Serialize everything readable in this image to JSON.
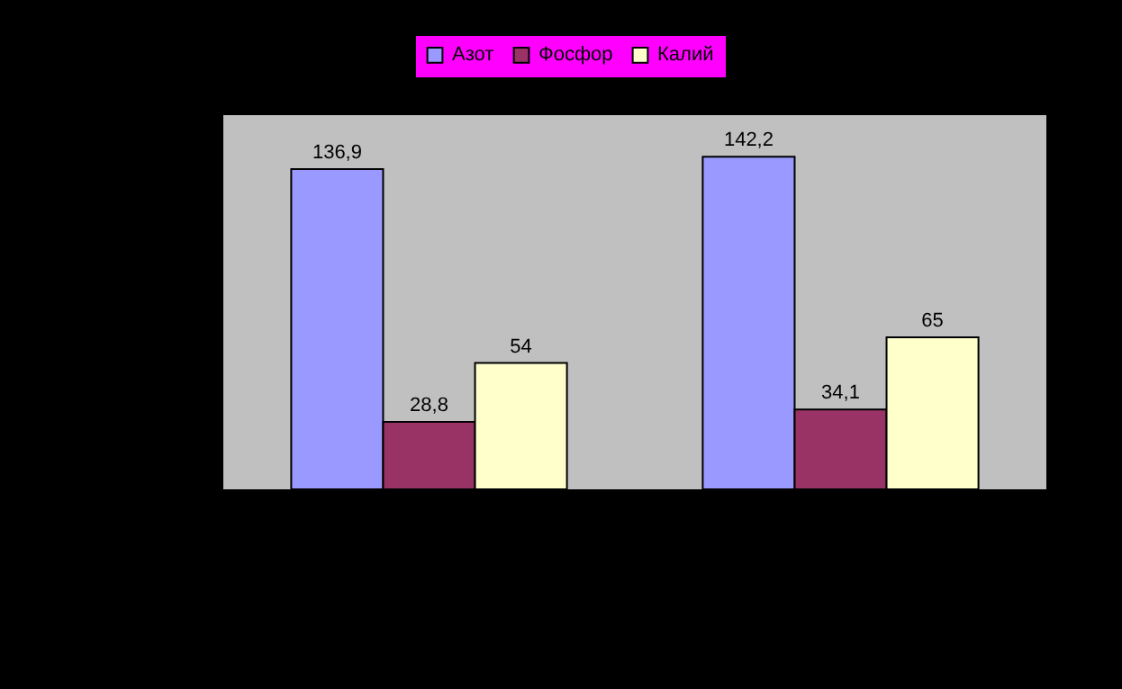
{
  "chart_data": {
    "type": "bar",
    "categories": [
      null,
      null
    ],
    "series": [
      {
        "name": "Азот",
        "color": "#9999ff",
        "values": [
          136.9,
          142.2
        ],
        "value_labels": [
          "136,9",
          "142,2"
        ]
      },
      {
        "name": "Фосфор",
        "color": "#993366",
        "values": [
          28.8,
          34.1
        ],
        "value_labels": [
          "28,8",
          "34,1"
        ]
      },
      {
        "name": "Калий",
        "color": "#ffffcc",
        "values": [
          54,
          65
        ],
        "value_labels": [
          "54",
          "65"
        ]
      }
    ],
    "ylim": [
      0,
      160
    ],
    "legend": "top"
  }
}
